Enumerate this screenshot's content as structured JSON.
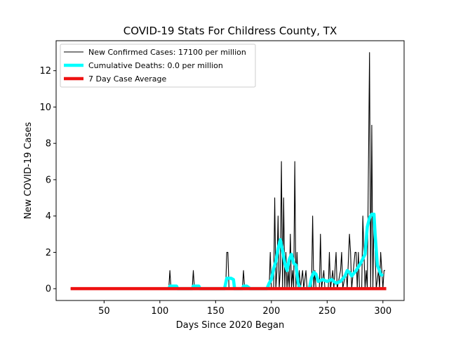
{
  "chart_data": {
    "type": "line",
    "title": "COVID-19 Stats For Childress County, TX",
    "xlabel": "Days Since 2020 Began",
    "ylabel": "New COVID-19 Cases",
    "xlim": [
      7,
      319
    ],
    "ylim": [
      -0.65,
      13.65
    ],
    "xticks": [
      50,
      100,
      150,
      200,
      250,
      300
    ],
    "yticks": [
      0,
      2,
      4,
      6,
      8,
      10,
      12
    ],
    "grid": false,
    "legend_position": "top-left",
    "series": [
      {
        "name": "New Confirmed Cases: 17100 per million",
        "color": "#000000",
        "points": [
          [
            20,
            0
          ],
          [
            108,
            0
          ],
          [
            109,
            1
          ],
          [
            110,
            0
          ],
          [
            129,
            0
          ],
          [
            130,
            1
          ],
          [
            131,
            0
          ],
          [
            159,
            0
          ],
          [
            160,
            2
          ],
          [
            161,
            2
          ],
          [
            162,
            0
          ],
          [
            174,
            0
          ],
          [
            175,
            1
          ],
          [
            176,
            0
          ],
          [
            198,
            0
          ],
          [
            199,
            2
          ],
          [
            200,
            0
          ],
          [
            202,
            0
          ],
          [
            203,
            5
          ],
          [
            204,
            0
          ],
          [
            205,
            1
          ],
          [
            206,
            4
          ],
          [
            207,
            0
          ],
          [
            208,
            1
          ],
          [
            209,
            7
          ],
          [
            210,
            0
          ],
          [
            211,
            5
          ],
          [
            212,
            0
          ],
          [
            213,
            2
          ],
          [
            214,
            0
          ],
          [
            215,
            1
          ],
          [
            216,
            0
          ],
          [
            217,
            3
          ],
          [
            218,
            0
          ],
          [
            219,
            1
          ],
          [
            220,
            0
          ],
          [
            221,
            7
          ],
          [
            222,
            0
          ],
          [
            223,
            2
          ],
          [
            224,
            0
          ],
          [
            225,
            1
          ],
          [
            226,
            0
          ],
          [
            228,
            1
          ],
          [
            229,
            0
          ],
          [
            231,
            1
          ],
          [
            232,
            0
          ],
          [
            236,
            0
          ],
          [
            237,
            4
          ],
          [
            238,
            0
          ],
          [
            239,
            1
          ],
          [
            240,
            0
          ],
          [
            243,
            0
          ],
          [
            244,
            3
          ],
          [
            245,
            0
          ],
          [
            247,
            1
          ],
          [
            248,
            0
          ],
          [
            251,
            0
          ],
          [
            252,
            2
          ],
          [
            253,
            0
          ],
          [
            255,
            1
          ],
          [
            256,
            0
          ],
          [
            258,
            2
          ],
          [
            259,
            0
          ],
          [
            262,
            1
          ],
          [
            263,
            2
          ],
          [
            264,
            0
          ],
          [
            267,
            1
          ],
          [
            268,
            0
          ],
          [
            270,
            3
          ],
          [
            271,
            2
          ],
          [
            272,
            0
          ],
          [
            275,
            2
          ],
          [
            276,
            2
          ],
          [
            277,
            0
          ],
          [
            278,
            2
          ],
          [
            279,
            0
          ],
          [
            281,
            0
          ],
          [
            282,
            4
          ],
          [
            283,
            2
          ],
          [
            284,
            0
          ],
          [
            285,
            1
          ],
          [
            286,
            0
          ],
          [
            288,
            13
          ],
          [
            289,
            0
          ],
          [
            290,
            9
          ],
          [
            291,
            0
          ],
          [
            292,
            4
          ],
          [
            293,
            2
          ],
          [
            294,
            0
          ],
          [
            296,
            1
          ],
          [
            297,
            0
          ],
          [
            298,
            2
          ],
          [
            299,
            1
          ],
          [
            300,
            0
          ],
          [
            301,
            1
          ],
          [
            302,
            1
          ]
        ]
      },
      {
        "name": "Cumulative Deaths: 0.0 per million",
        "color": "#00ffff",
        "points": [
          [
            108,
            0
          ],
          [
            109,
            0.14
          ],
          [
            110,
            0.14
          ],
          [
            111,
            0.14
          ],
          [
            112,
            0.14
          ],
          [
            113,
            0.14
          ],
          [
            114,
            0.14
          ],
          [
            115,
            0.14
          ],
          [
            116,
            0
          ],
          [
            129,
            0
          ],
          [
            130,
            0.14
          ],
          [
            131,
            0.14
          ],
          [
            132,
            0.14
          ],
          [
            133,
            0.14
          ],
          [
            134,
            0.14
          ],
          [
            135,
            0.14
          ],
          [
            136,
            0
          ],
          [
            158,
            0
          ],
          [
            159,
            0.3
          ],
          [
            160,
            0.57
          ],
          [
            162,
            0.57
          ],
          [
            164,
            0.57
          ],
          [
            166,
            0.5
          ],
          [
            167,
            0
          ],
          [
            174,
            0
          ],
          [
            175,
            0.14
          ],
          [
            178,
            0.14
          ],
          [
            181,
            0
          ],
          [
            196,
            0
          ],
          [
            198,
            0.3
          ],
          [
            200,
            0.5
          ],
          [
            202,
            1.1
          ],
          [
            204,
            1.5
          ],
          [
            206,
            2.2
          ],
          [
            208,
            2.7
          ],
          [
            210,
            2.1
          ],
          [
            212,
            1.4
          ],
          [
            214,
            1.0
          ],
          [
            216,
            1.6
          ],
          [
            218,
            1.9
          ],
          [
            220,
            1.4
          ],
          [
            222,
            1.3
          ],
          [
            224,
            0.3
          ],
          [
            226,
            0
          ],
          [
            234,
            0
          ],
          [
            236,
            0.6
          ],
          [
            238,
            0.9
          ],
          [
            240,
            0.8
          ],
          [
            242,
            0.4
          ],
          [
            246,
            0.5
          ],
          [
            250,
            0.4
          ],
          [
            254,
            0.5
          ],
          [
            258,
            0.3
          ],
          [
            262,
            0.4
          ],
          [
            266,
            0.7
          ],
          [
            268,
            1.0
          ],
          [
            270,
            0.9
          ],
          [
            272,
            0.7
          ],
          [
            276,
            1.0
          ],
          [
            280,
            1.4
          ],
          [
            284,
            1.9
          ],
          [
            286,
            3.4
          ],
          [
            288,
            3.9
          ],
          [
            290,
            4.1
          ],
          [
            292,
            4.1
          ],
          [
            293,
            3.0
          ],
          [
            295,
            1.3
          ],
          [
            298,
            0.8
          ],
          [
            300,
            0.7
          ]
        ]
      },
      {
        "name": "7 Day Case Average",
        "color": "#ee1111",
        "points": [
          [
            20,
            0
          ],
          [
            303,
            0
          ]
        ]
      }
    ]
  }
}
